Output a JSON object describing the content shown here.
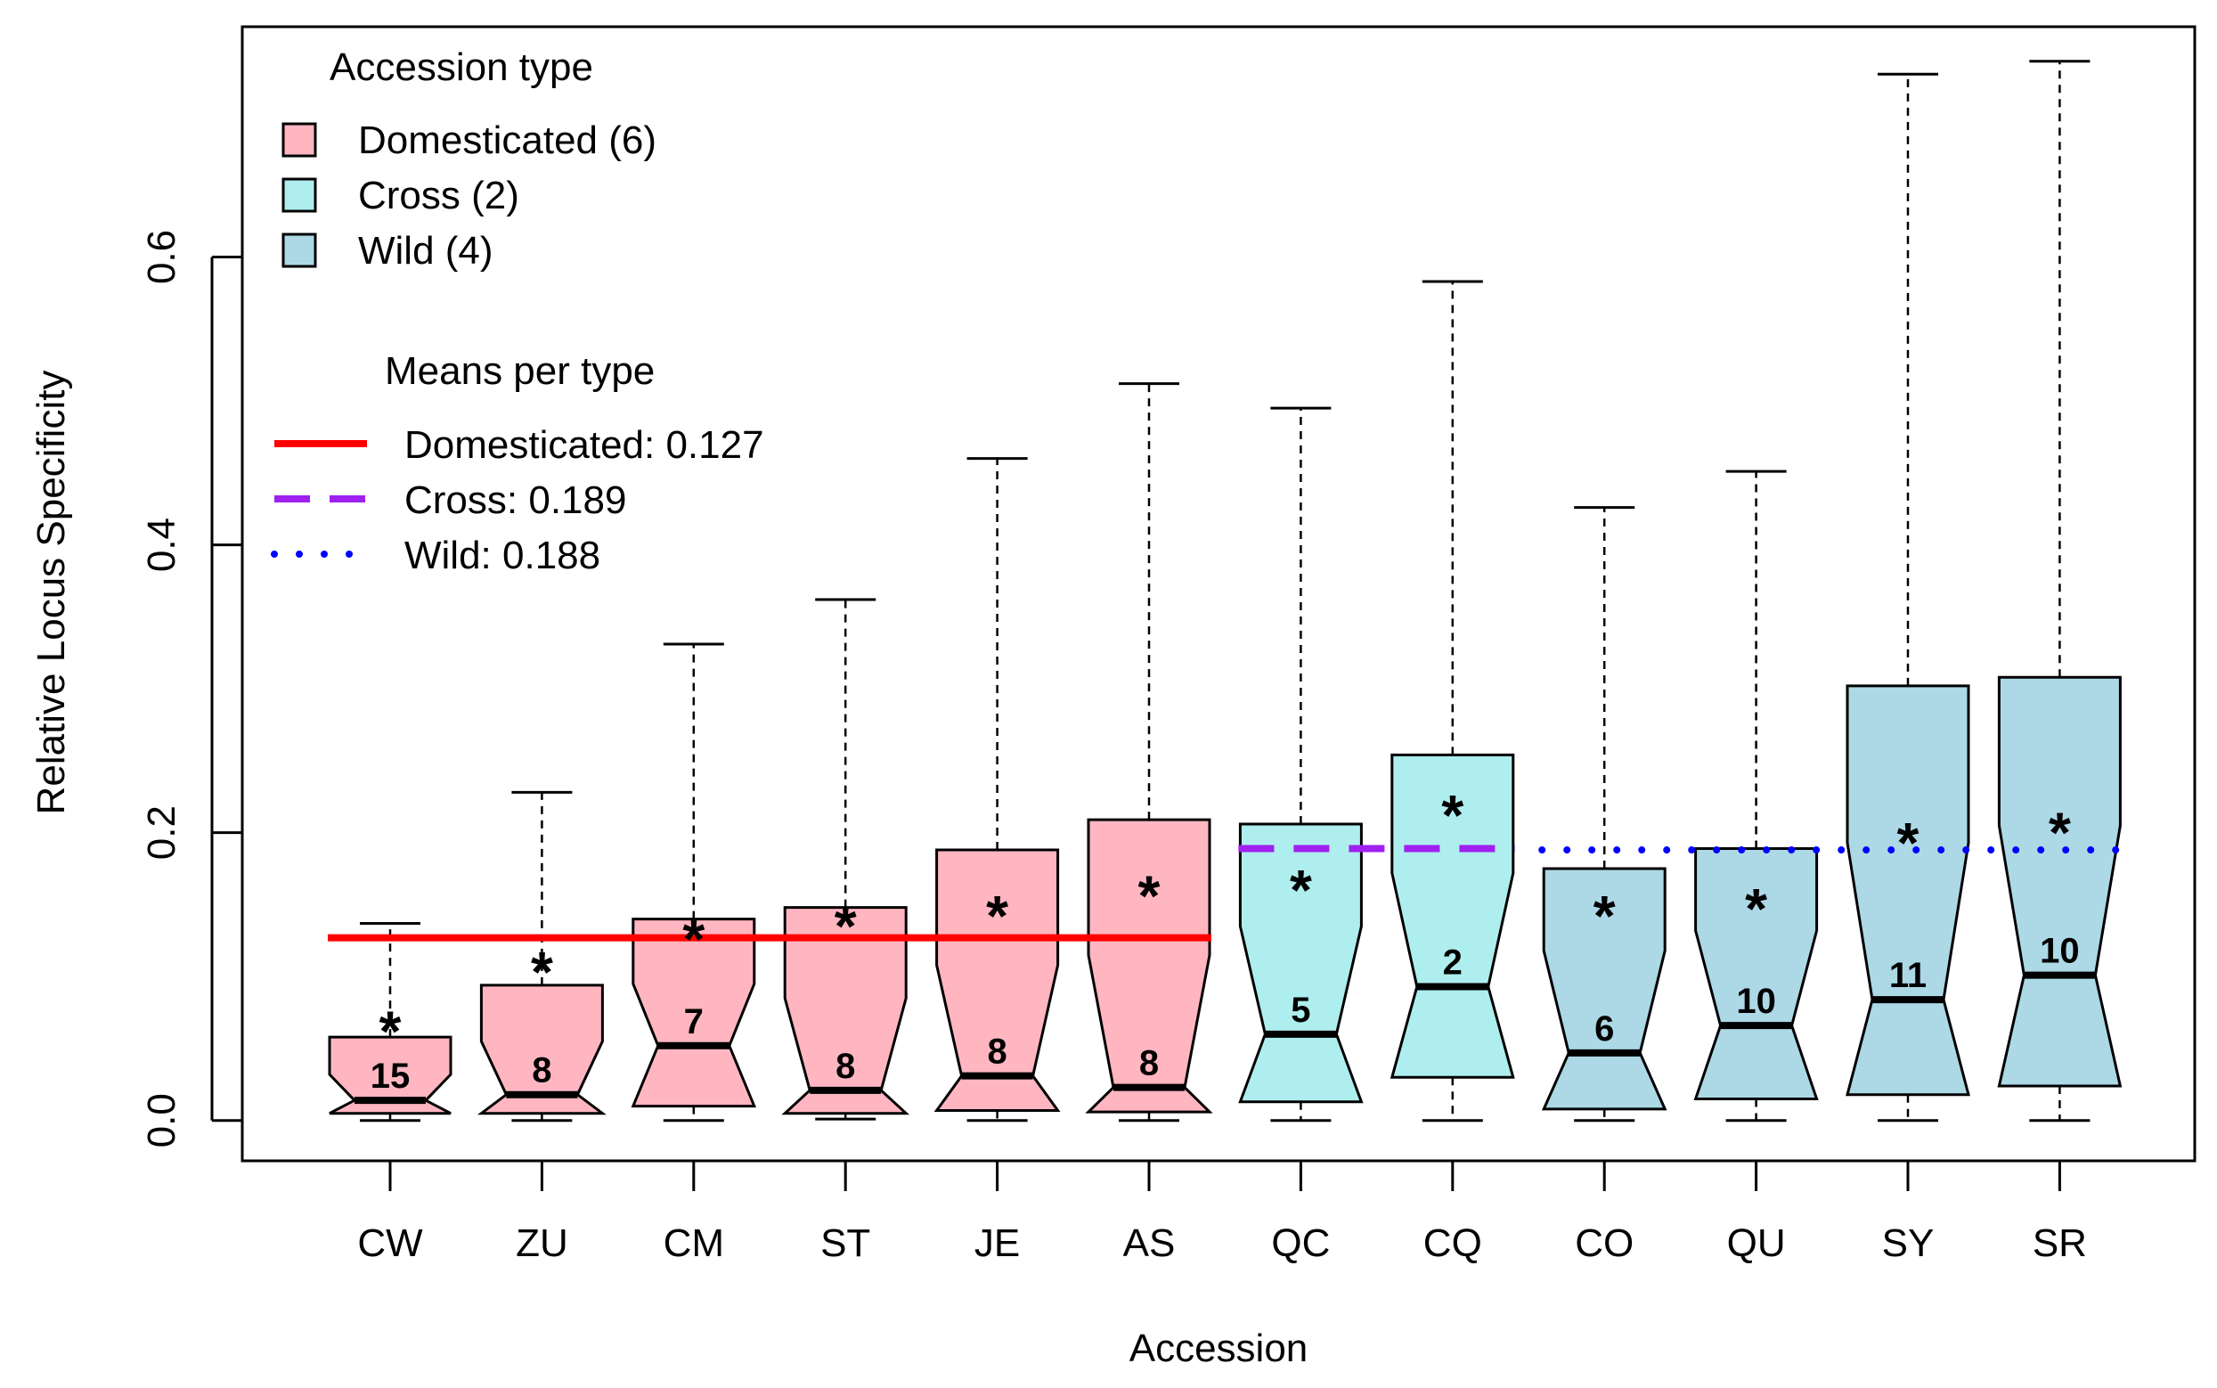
{
  "chart_data": {
    "type": "boxplot",
    "xlabel": "Accession",
    "ylabel": "Relative Locus Specificity",
    "ylim": [
      -0.028,
      0.76
    ],
    "yticks": [
      0.0,
      0.2,
      0.4,
      0.6
    ],
    "ytick_labels": [
      "0.0",
      "0.2",
      "0.4",
      "0.6"
    ],
    "legend_types": {
      "title": "Accession type",
      "entries": [
        {
          "label": "Domesticated (6)",
          "color": "#FFB6C1"
        },
        {
          "label": "Cross (2)",
          "color": "#AFEEEE"
        },
        {
          "label": "Wild (4)",
          "color": "#ADD8E6"
        }
      ]
    },
    "legend_means": {
      "title": "Means per type",
      "entries": [
        {
          "label": "Domesticated: 0.127",
          "color": "#FF0000",
          "style": "solid",
          "value": 0.127
        },
        {
          "label": "Cross: 0.189",
          "color": "#A020F0",
          "style": "dashed",
          "value": 0.189
        },
        {
          "label": "Wild: 0.188",
          "color": "#0000FF",
          "style": "dotted",
          "value": 0.188
        }
      ]
    },
    "categories": [
      "CW",
      "ZU",
      "CM",
      "ST",
      "JE",
      "AS",
      "QC",
      "CQ",
      "CO",
      "QU",
      "SY",
      "SR"
    ],
    "boxes": [
      {
        "name": "CW",
        "type": "Domesticated",
        "color": "#FFB6C1",
        "min": 0.0,
        "q1": 0.005,
        "median": 0.014,
        "q3": 0.058,
        "max": 0.137,
        "notch_lo": 0.005,
        "notch_hi": 0.032,
        "mean": 0.072,
        "count": "15"
      },
      {
        "name": "ZU",
        "type": "Domesticated",
        "color": "#FFB6C1",
        "min": 0.0,
        "q1": 0.005,
        "median": 0.018,
        "q3": 0.094,
        "max": 0.228,
        "notch_lo": 0.005,
        "notch_hi": 0.055,
        "mean": 0.113,
        "count": "8"
      },
      {
        "name": "CM",
        "type": "Domesticated",
        "color": "#FFB6C1",
        "min": 0.0,
        "q1": 0.01,
        "median": 0.052,
        "q3": 0.14,
        "max": 0.331,
        "notch_lo": 0.01,
        "notch_hi": 0.095,
        "mean": 0.136,
        "count": "7"
      },
      {
        "name": "ST",
        "type": "Domesticated",
        "color": "#FFB6C1",
        "min": 0.001,
        "q1": 0.005,
        "median": 0.021,
        "q3": 0.148,
        "max": 0.362,
        "notch_lo": 0.005,
        "notch_hi": 0.085,
        "mean": 0.145,
        "count": "8"
      },
      {
        "name": "JE",
        "type": "Domesticated",
        "color": "#FFB6C1",
        "min": 0.0,
        "q1": 0.007,
        "median": 0.031,
        "q3": 0.188,
        "max": 0.46,
        "notch_lo": 0.007,
        "notch_hi": 0.108,
        "mean": 0.152,
        "count": "8"
      },
      {
        "name": "AS",
        "type": "Domesticated",
        "color": "#FFB6C1",
        "min": 0.0,
        "q1": 0.006,
        "median": 0.023,
        "q3": 0.209,
        "max": 0.512,
        "notch_lo": 0.006,
        "notch_hi": 0.115,
        "mean": 0.166,
        "count": "8"
      },
      {
        "name": "QC",
        "type": "Cross",
        "color": "#AFEEEE",
        "min": 0.0,
        "q1": 0.013,
        "median": 0.06,
        "q3": 0.206,
        "max": 0.495,
        "notch_lo": 0.013,
        "notch_hi": 0.135,
        "mean": 0.17,
        "count": "5"
      },
      {
        "name": "CQ",
        "type": "Cross",
        "color": "#AFEEEE",
        "min": 0.0,
        "q1": 0.03,
        "median": 0.093,
        "q3": 0.254,
        "max": 0.583,
        "notch_lo": 0.03,
        "notch_hi": 0.172,
        "mean": 0.222,
        "count": "2"
      },
      {
        "name": "CO",
        "type": "Wild",
        "color": "#ADD8E6",
        "min": 0.0,
        "q1": 0.008,
        "median": 0.047,
        "q3": 0.175,
        "max": 0.426,
        "notch_lo": 0.008,
        "notch_hi": 0.118,
        "mean": 0.152,
        "count": "6"
      },
      {
        "name": "QU",
        "type": "Wild",
        "color": "#ADD8E6",
        "min": 0.0,
        "q1": 0.015,
        "median": 0.066,
        "q3": 0.189,
        "max": 0.451,
        "notch_lo": 0.015,
        "notch_hi": 0.132,
        "mean": 0.157,
        "count": "10"
      },
      {
        "name": "SY",
        "type": "Wild",
        "color": "#ADD8E6",
        "min": 0.0,
        "q1": 0.018,
        "median": 0.084,
        "q3": 0.302,
        "max": 0.727,
        "notch_lo": 0.018,
        "notch_hi": 0.193,
        "mean": 0.203,
        "count": "11"
      },
      {
        "name": "SR",
        "type": "Wild",
        "color": "#ADD8E6",
        "min": 0.0,
        "q1": 0.024,
        "median": 0.101,
        "q3": 0.308,
        "max": 0.736,
        "notch_lo": 0.024,
        "notch_hi": 0.205,
        "mean": 0.21,
        "count": "10"
      }
    ],
    "mean_lines": [
      {
        "type": "Domesticated",
        "value": 0.127,
        "from": 0,
        "to": 5,
        "color": "#FF0000",
        "style": "solid"
      },
      {
        "type": "Cross",
        "value": 0.189,
        "from": 6,
        "to": 7,
        "color": "#A020F0",
        "style": "dashed"
      },
      {
        "type": "Wild",
        "value": 0.188,
        "from": 8,
        "to": 11,
        "color": "#0000FF",
        "style": "dotted"
      }
    ],
    "mean_marker": "*"
  }
}
